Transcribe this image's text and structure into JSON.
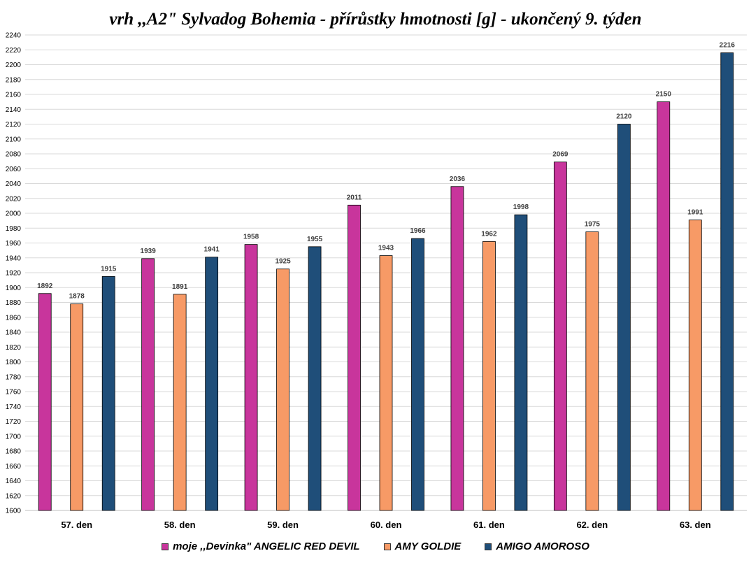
{
  "chart_data": {
    "type": "bar",
    "title": "vrh ,,A2\" Sylvadog Bohemia - přírůstky hmotnosti [g] - ukončený 9. týden",
    "xlabel": "",
    "ylabel": "",
    "ylim": [
      1600,
      2240
    ],
    "ytick_step": 20,
    "grid": true,
    "legend_position": "bottom",
    "categories": [
      "57. den",
      "58. den",
      "59. den",
      "60. den",
      "61. den",
      "62. den",
      "63. den"
    ],
    "series": [
      {
        "name": "moje ,,Devinka\" ANGELIC RED DEVIL",
        "color": "#C8359C",
        "values": [
          1892,
          1939,
          1958,
          2011,
          2036,
          2069,
          2150
        ]
      },
      {
        "name": "AMY GOLDIE",
        "color": "#F79A66",
        "values": [
          1878,
          1891,
          1925,
          1943,
          1962,
          1975,
          1991
        ]
      },
      {
        "name": "AMIGO AMOROSO",
        "color": "#1F4E79",
        "values": [
          1915,
          1941,
          1955,
          1966,
          1998,
          2120,
          2216
        ]
      }
    ]
  }
}
